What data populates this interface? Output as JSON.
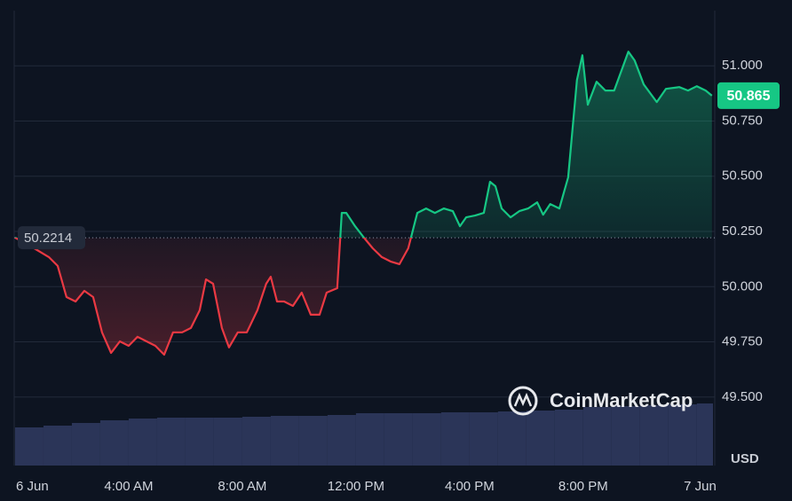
{
  "chart_data": {
    "type": "line",
    "baseline": 50.2214,
    "baseline_label": "50.2214",
    "last_label": "50.865",
    "currency_label": "USD",
    "watermark": "CoinMarketCap",
    "series": [
      {
        "name": "Price",
        "color_up": "#16c784",
        "color_down": "#ea3943",
        "x": [
          0,
          0.41,
          1.19,
          1.5,
          1.81,
          2.13,
          2.44,
          2.75,
          3.06,
          3.38,
          3.69,
          4,
          4.31,
          4.63,
          4.94,
          5.25,
          5.56,
          5.88,
          6.19,
          6.5,
          6.72,
          6.97,
          7.28,
          7.53,
          7.84,
          8.16,
          8.53,
          8.84,
          9,
          9.22,
          9.47,
          9.78,
          10.09,
          10.41,
          10.72,
          10.97,
          11.34,
          11.5,
          11.66,
          11.97,
          12.28,
          12.59,
          12.91,
          13.22,
          13.53,
          13.84,
          14.16,
          14.47,
          14.78,
          15.09,
          15.41,
          15.66,
          15.88,
          16.19,
          16.5,
          16.72,
          16.91,
          17.13,
          17.44,
          17.75,
          18.06,
          18.38,
          18.59,
          18.84,
          19.16,
          19.47,
          19.78,
          19.97,
          20.16,
          20.47,
          20.78,
          21.09,
          21.34,
          21.59,
          21.81,
          22.13,
          22.59,
          22.91,
          23.38,
          23.69,
          24,
          24.31,
          24.53
        ],
        "values": [
          50.222,
          50.194,
          50.134,
          50.094,
          49.953,
          49.933,
          49.981,
          49.953,
          49.793,
          49.7,
          49.752,
          49.732,
          49.773,
          49.752,
          49.732,
          49.692,
          49.793,
          49.793,
          49.813,
          49.893,
          50.033,
          50.013,
          49.813,
          49.725,
          49.793,
          49.793,
          49.893,
          50.013,
          50.045,
          49.933,
          49.933,
          49.913,
          49.973,
          49.873,
          49.873,
          49.973,
          49.993,
          50.334,
          50.334,
          50.274,
          50.222,
          50.174,
          50.134,
          50.114,
          50.102,
          50.174,
          50.334,
          50.354,
          50.334,
          50.354,
          50.342,
          50.274,
          50.314,
          50.322,
          50.334,
          50.475,
          50.455,
          50.354,
          50.314,
          50.342,
          50.354,
          50.382,
          50.326,
          50.374,
          50.354,
          50.495,
          50.936,
          51.048,
          50.824,
          50.928,
          50.888,
          50.888,
          50.976,
          51.064,
          51.024,
          50.916,
          50.836,
          50.896,
          50.904,
          50.888,
          50.908,
          50.888,
          50.865
        ]
      }
    ],
    "volume": {
      "name": "Volume",
      "color": "#2b3558",
      "x": [
        0,
        1,
        2,
        3,
        4,
        5,
        6,
        7,
        8,
        9,
        10,
        11,
        12,
        13,
        14,
        15,
        16,
        17,
        18,
        19,
        20,
        21,
        22,
        23,
        24
      ],
      "values": [
        43,
        45,
        48,
        51,
        53,
        54,
        54,
        54,
        55,
        56,
        56,
        57,
        59,
        59,
        59,
        60,
        60,
        61,
        62,
        63,
        66,
        67,
        68,
        69,
        70
      ]
    },
    "xlim": [
      -0.03,
      24.63
    ],
    "xticks": [
      {
        "value": 0,
        "label": "6 Jun"
      },
      {
        "value": 4,
        "label": "4:00 AM"
      },
      {
        "value": 8,
        "label": "8:00 AM"
      },
      {
        "value": 12,
        "label": "12:00 PM"
      },
      {
        "value": 16,
        "label": "4:00 PM"
      },
      {
        "value": 20,
        "label": "8:00 PM"
      },
      {
        "value": 24,
        "label": "7 Jun"
      }
    ],
    "ylim": [
      49.19,
      51.25
    ],
    "yticks": [
      {
        "value": 49.5,
        "label": "49.500"
      },
      {
        "value": 49.75,
        "label": "49.750"
      },
      {
        "value": 50,
        "label": "50.000"
      },
      {
        "value": 50.25,
        "label": "50.250"
      },
      {
        "value": 50.5,
        "label": "50.500"
      },
      {
        "value": 50.75,
        "label": "50.750"
      },
      {
        "value": 51,
        "label": "51.000"
      }
    ],
    "grid": true
  }
}
